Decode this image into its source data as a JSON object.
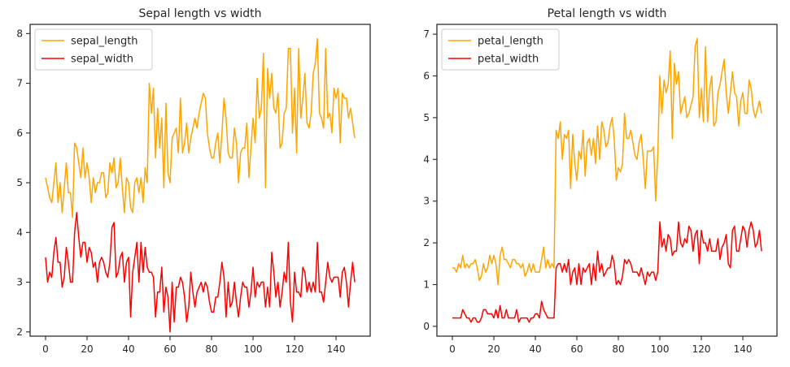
{
  "chart_data": [
    {
      "type": "line",
      "title": "Sepal length vs width",
      "xlabel": "",
      "ylabel": "",
      "xlim": [
        -7.45,
        156.45
      ],
      "ylim": [
        1.915,
        8.185
      ],
      "xticks": [
        0,
        20,
        40,
        60,
        80,
        100,
        120,
        140
      ],
      "yticks": [
        2,
        3,
        4,
        5,
        6,
        7,
        8
      ],
      "legend": "top-left",
      "grid": false,
      "series": [
        {
          "name": "sepal_length",
          "color": "#ffa500",
          "values": [
            5.1,
            4.9,
            4.7,
            4.6,
            5.0,
            5.4,
            4.6,
            5.0,
            4.4,
            4.9,
            5.4,
            4.8,
            4.8,
            4.3,
            5.8,
            5.7,
            5.4,
            5.1,
            5.7,
            5.1,
            5.4,
            5.1,
            4.6,
            5.1,
            4.8,
            5.0,
            5.0,
            5.2,
            5.2,
            4.7,
            4.8,
            5.4,
            5.2,
            5.5,
            4.9,
            5.0,
            5.5,
            4.9,
            4.4,
            5.1,
            5.0,
            4.5,
            4.4,
            5.0,
            5.1,
            4.8,
            5.1,
            4.6,
            5.3,
            5.0,
            7.0,
            6.4,
            6.9,
            5.5,
            6.5,
            5.7,
            6.3,
            4.9,
            6.6,
            5.2,
            5.0,
            5.9,
            6.0,
            6.1,
            5.6,
            6.7,
            5.6,
            5.8,
            6.2,
            5.6,
            5.9,
            6.1,
            6.3,
            6.1,
            6.4,
            6.6,
            6.8,
            6.7,
            6.0,
            5.7,
            5.5,
            5.5,
            5.8,
            6.0,
            5.4,
            6.0,
            6.7,
            6.3,
            5.6,
            5.5,
            5.5,
            6.1,
            5.8,
            5.0,
            5.6,
            5.7,
            5.7,
            6.2,
            5.1,
            5.7,
            6.3,
            5.8,
            7.1,
            6.3,
            6.5,
            7.6,
            4.9,
            7.3,
            6.7,
            7.2,
            6.5,
            6.4,
            6.8,
            5.7,
            5.8,
            6.4,
            6.5,
            7.7,
            7.7,
            6.0,
            6.9,
            5.6,
            7.7,
            6.3,
            6.7,
            7.2,
            6.2,
            6.1,
            6.4,
            7.2,
            7.4,
            7.9,
            6.4,
            6.3,
            6.1,
            7.7,
            6.3,
            6.4,
            6.0,
            6.9,
            6.7,
            6.9,
            5.8,
            6.8,
            6.7,
            6.7,
            6.3,
            6.5,
            6.2,
            5.9
          ]
        },
        {
          "name": "sepal_width",
          "color": "#ff0000",
          "values": [
            3.5,
            3.0,
            3.2,
            3.1,
            3.6,
            3.9,
            3.4,
            3.4,
            2.9,
            3.1,
            3.7,
            3.4,
            3.0,
            3.0,
            4.0,
            4.4,
            3.9,
            3.5,
            3.8,
            3.8,
            3.4,
            3.7,
            3.6,
            3.3,
            3.4,
            3.0,
            3.4,
            3.5,
            3.4,
            3.2,
            3.1,
            3.4,
            4.1,
            4.2,
            3.1,
            3.2,
            3.5,
            3.6,
            3.0,
            3.4,
            3.5,
            2.3,
            3.2,
            3.5,
            3.8,
            3.0,
            3.8,
            3.2,
            3.7,
            3.3,
            3.2,
            3.2,
            3.1,
            2.3,
            2.8,
            2.8,
            3.3,
            2.4,
            2.9,
            2.7,
            2.0,
            3.0,
            2.2,
            2.9,
            2.9,
            3.1,
            3.0,
            2.7,
            2.2,
            2.5,
            3.2,
            2.8,
            2.5,
            2.8,
            2.9,
            3.0,
            2.8,
            3.0,
            2.9,
            2.6,
            2.4,
            2.4,
            2.7,
            2.7,
            3.0,
            3.4,
            3.1,
            2.3,
            3.0,
            2.5,
            2.6,
            3.0,
            2.6,
            2.3,
            2.7,
            3.0,
            2.9,
            2.9,
            2.5,
            2.8,
            3.3,
            2.7,
            3.0,
            2.9,
            3.0,
            3.0,
            2.5,
            2.9,
            2.5,
            3.6,
            3.2,
            2.7,
            3.0,
            2.5,
            2.8,
            3.2,
            3.0,
            3.8,
            2.6,
            2.2,
            3.2,
            2.8,
            2.8,
            2.7,
            3.3,
            3.2,
            2.8,
            3.0,
            2.8,
            3.0,
            2.8,
            3.8,
            2.8,
            2.8,
            2.6,
            3.0,
            3.4,
            3.1,
            3.0,
            3.1,
            3.1,
            3.1,
            2.7,
            3.2,
            3.3,
            3.0,
            2.5,
            3.0,
            3.4,
            3.0
          ]
        }
      ]
    },
    {
      "type": "line",
      "title": "Petal length vs width",
      "xlabel": "",
      "ylabel": "",
      "xlim": [
        -7.45,
        156.45
      ],
      "ylim": [
        -0.235,
        7.235
      ],
      "xticks": [
        0,
        20,
        40,
        60,
        80,
        100,
        120,
        140
      ],
      "yticks": [
        0,
        1,
        2,
        3,
        4,
        5,
        6,
        7
      ],
      "legend": "top-left",
      "grid": false,
      "series": [
        {
          "name": "petal_length",
          "color": "#ffa500",
          "values": [
            1.4,
            1.4,
            1.3,
            1.5,
            1.4,
            1.7,
            1.4,
            1.5,
            1.4,
            1.5,
            1.5,
            1.6,
            1.4,
            1.1,
            1.2,
            1.5,
            1.3,
            1.4,
            1.7,
            1.5,
            1.7,
            1.5,
            1.0,
            1.7,
            1.9,
            1.6,
            1.6,
            1.5,
            1.4,
            1.6,
            1.6,
            1.5,
            1.5,
            1.4,
            1.5,
            1.2,
            1.3,
            1.5,
            1.3,
            1.5,
            1.3,
            1.3,
            1.3,
            1.6,
            1.9,
            1.4,
            1.6,
            1.4,
            1.5,
            1.4,
            4.7,
            4.5,
            4.9,
            4.0,
            4.6,
            4.5,
            4.7,
            3.3,
            4.6,
            3.9,
            3.5,
            4.2,
            4.0,
            4.7,
            3.6,
            4.4,
            4.5,
            4.1,
            4.5,
            3.9,
            4.8,
            4.0,
            4.9,
            4.7,
            4.3,
            4.4,
            4.8,
            5.0,
            4.5,
            3.5,
            3.8,
            3.7,
            3.9,
            5.1,
            4.5,
            4.5,
            4.7,
            4.4,
            4.1,
            4.0,
            4.4,
            4.6,
            4.0,
            3.3,
            4.2,
            4.2,
            4.2,
            4.3,
            3.0,
            4.1,
            6.0,
            5.1,
            5.9,
            5.6,
            5.8,
            6.6,
            4.5,
            6.3,
            5.8,
            6.1,
            5.1,
            5.3,
            5.5,
            5.0,
            5.1,
            5.3,
            5.5,
            6.7,
            6.9,
            5.0,
            5.7,
            4.9,
            6.7,
            4.9,
            5.7,
            6.0,
            4.8,
            4.9,
            5.6,
            5.8,
            6.1,
            6.4,
            5.6,
            5.1,
            5.6,
            6.1,
            5.6,
            5.5,
            4.8,
            5.4,
            5.6,
            5.1,
            5.1,
            5.9,
            5.7,
            5.2,
            5.0,
            5.2,
            5.4,
            5.1
          ]
        },
        {
          "name": "petal_width",
          "color": "#ff0000",
          "values": [
            0.2,
            0.2,
            0.2,
            0.2,
            0.2,
            0.4,
            0.3,
            0.2,
            0.2,
            0.1,
            0.2,
            0.2,
            0.1,
            0.1,
            0.2,
            0.4,
            0.4,
            0.3,
            0.3,
            0.3,
            0.2,
            0.4,
            0.2,
            0.5,
            0.2,
            0.2,
            0.4,
            0.2,
            0.2,
            0.2,
            0.2,
            0.4,
            0.1,
            0.2,
            0.2,
            0.2,
            0.2,
            0.1,
            0.2,
            0.2,
            0.3,
            0.3,
            0.2,
            0.6,
            0.4,
            0.3,
            0.2,
            0.2,
            0.2,
            0.2,
            1.4,
            1.5,
            1.5,
            1.3,
            1.5,
            1.3,
            1.6,
            1.0,
            1.3,
            1.4,
            1.0,
            1.5,
            1.0,
            1.4,
            1.3,
            1.4,
            1.5,
            1.0,
            1.5,
            1.1,
            1.8,
            1.3,
            1.5,
            1.2,
            1.3,
            1.4,
            1.4,
            1.7,
            1.5,
            1.0,
            1.1,
            1.0,
            1.2,
            1.6,
            1.5,
            1.6,
            1.5,
            1.3,
            1.3,
            1.3,
            1.2,
            1.4,
            1.2,
            1.0,
            1.3,
            1.2,
            1.3,
            1.3,
            1.1,
            1.3,
            2.5,
            1.9,
            2.1,
            1.8,
            2.2,
            2.1,
            1.7,
            1.8,
            1.8,
            2.5,
            2.0,
            1.9,
            2.1,
            2.0,
            2.4,
            2.3,
            1.8,
            2.2,
            2.3,
            1.5,
            2.3,
            2.0,
            2.0,
            1.8,
            2.1,
            1.8,
            1.8,
            1.8,
            2.1,
            1.6,
            1.9,
            2.0,
            2.2,
            1.5,
            1.4,
            2.3,
            2.4,
            1.8,
            1.8,
            2.1,
            2.4,
            2.3,
            1.9,
            2.3,
            2.5,
            2.3,
            1.9,
            2.0,
            2.3,
            1.8
          ]
        }
      ]
    }
  ]
}
